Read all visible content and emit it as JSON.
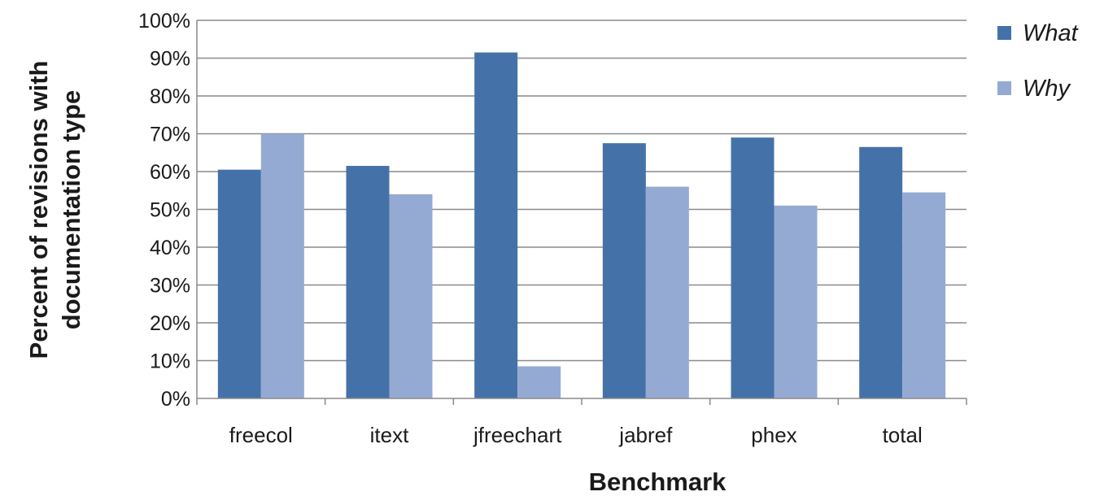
{
  "chart_data": {
    "type": "bar",
    "title": "",
    "xlabel": "Benchmark",
    "ylabel_lines": [
      "Percent of revisions with",
      "documentation type"
    ],
    "categories": [
      "freecol",
      "itext",
      "jfreechart",
      "jabref",
      "phex",
      "total"
    ],
    "series": [
      {
        "name": "What",
        "color": "#4472a8",
        "values": [
          60.5,
          61.5,
          91.5,
          67.5,
          69,
          66.5
        ]
      },
      {
        "name": "Why",
        "color": "#95aad2",
        "values": [
          70,
          54,
          8.5,
          56,
          51,
          54.5
        ]
      }
    ],
    "ylim": [
      0,
      100
    ],
    "yticks": [
      0,
      10,
      20,
      30,
      40,
      50,
      60,
      70,
      80,
      90,
      100
    ],
    "ytick_suffix": "%",
    "grid": true,
    "legend": "top-right"
  }
}
